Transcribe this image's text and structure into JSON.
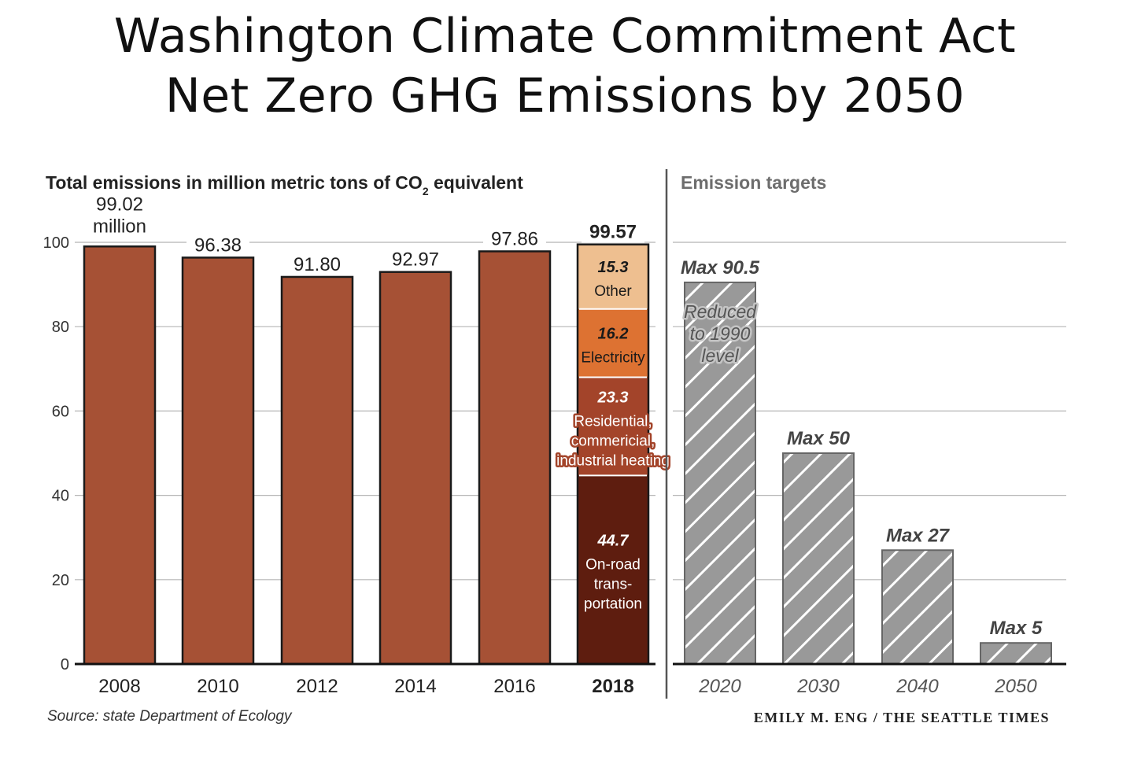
{
  "title": {
    "line1": "Washington Climate Commitment Act",
    "line2": "Net Zero GHG Emissions by 2050"
  },
  "chart_data": {
    "type": "bar",
    "title": "Washington Climate Commitment Act Net Zero GHG Emissions by 2050",
    "ylabel_prefix": "Total emissions in million metric tons of CO",
    "ylabel_sub": "2",
    "ylabel_suffix": " equivalent",
    "ylim": [
      0,
      100
    ],
    "yticks": [
      0,
      20,
      40,
      60,
      80,
      100
    ],
    "historical": {
      "categories": [
        "2008",
        "2010",
        "2012",
        "2014",
        "2016",
        "2018"
      ],
      "values": [
        99.02,
        96.38,
        91.8,
        92.97,
        97.86,
        99.57
      ],
      "value_labels": [
        "99.02",
        "96.38",
        "91.80",
        "92.97",
        "97.86",
        "99.57"
      ],
      "first_label_suffix": "million",
      "bar_color": "#a65135"
    },
    "breakdown_2018": {
      "category": "2018",
      "segments": [
        {
          "value": 44.7,
          "label": "44.7",
          "text": [
            "On-road",
            "trans-",
            "portation"
          ],
          "color": "#5e1d0f",
          "text_color": "#ffffff"
        },
        {
          "value": 23.3,
          "label": "23.3",
          "text": [
            "Residential,",
            "commericial,",
            "industrial heating"
          ],
          "color": "#a3442a",
          "text_color": "#ffffff"
        },
        {
          "value": 16.2,
          "label": "16.2",
          "text": [
            "Electricity"
          ],
          "color": "#dd7232",
          "text_color": "#1a1a1a"
        },
        {
          "value": 15.3,
          "label": "15.3",
          "text": [
            "Other"
          ],
          "color": "#eebf90",
          "text_color": "#1a1a1a"
        }
      ]
    },
    "targets": {
      "title": "Emission targets",
      "categories": [
        "2020",
        "2030",
        "2040",
        "2050"
      ],
      "values": [
        90.5,
        50,
        27,
        5
      ],
      "labels": [
        "Max 90.5",
        "Max 50",
        "Max 27",
        "Max 5"
      ],
      "note_2020": [
        "Reduced",
        "to 1990",
        "level"
      ],
      "bar_color": "#999999"
    },
    "source": "Source: state Department of Ecology",
    "credit": "EMILY M. ENG / THE SEATTLE TIMES"
  }
}
